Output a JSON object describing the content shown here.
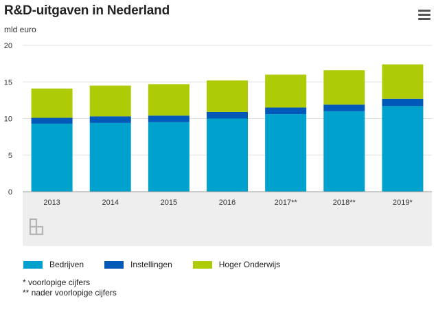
{
  "title": "R&D-uitgaven in Nederland",
  "subtitle": "mld euro",
  "notes": [
    "* voorlopige cijfers",
    "** nader voorlopige cijfers"
  ],
  "icons": {
    "menu": "hamburger-menu-icon",
    "logo": "cbs-logo"
  },
  "colors": {
    "bedrijven": "#00A1CD",
    "instellingen": "#0058B8",
    "hoger_onderwijs": "#AFCB05",
    "grid": "#E0E0E0",
    "footer_bg": "#EEEEEE"
  },
  "chart_data": {
    "type": "bar",
    "stacked": true,
    "categories": [
      "2013",
      "2014",
      "2015",
      "2016",
      "2017**",
      "2018**",
      "2019*"
    ],
    "series": [
      {
        "name": "Bedrijven",
        "values": [
          9.3,
          9.4,
          9.5,
          10.0,
          10.6,
          11.0,
          11.7
        ]
      },
      {
        "name": "Instellingen",
        "values": [
          0.8,
          0.9,
          0.9,
          0.9,
          0.9,
          0.9,
          1.0
        ]
      },
      {
        "name": "Hoger Onderwijs",
        "values": [
          4.0,
          4.2,
          4.3,
          4.3,
          4.5,
          4.7,
          4.7
        ]
      }
    ],
    "yticks": [
      "0",
      "5",
      "10",
      "15",
      "20"
    ],
    "ylim": [
      0,
      20
    ],
    "grid": true,
    "legend_position": "bottom-left"
  }
}
